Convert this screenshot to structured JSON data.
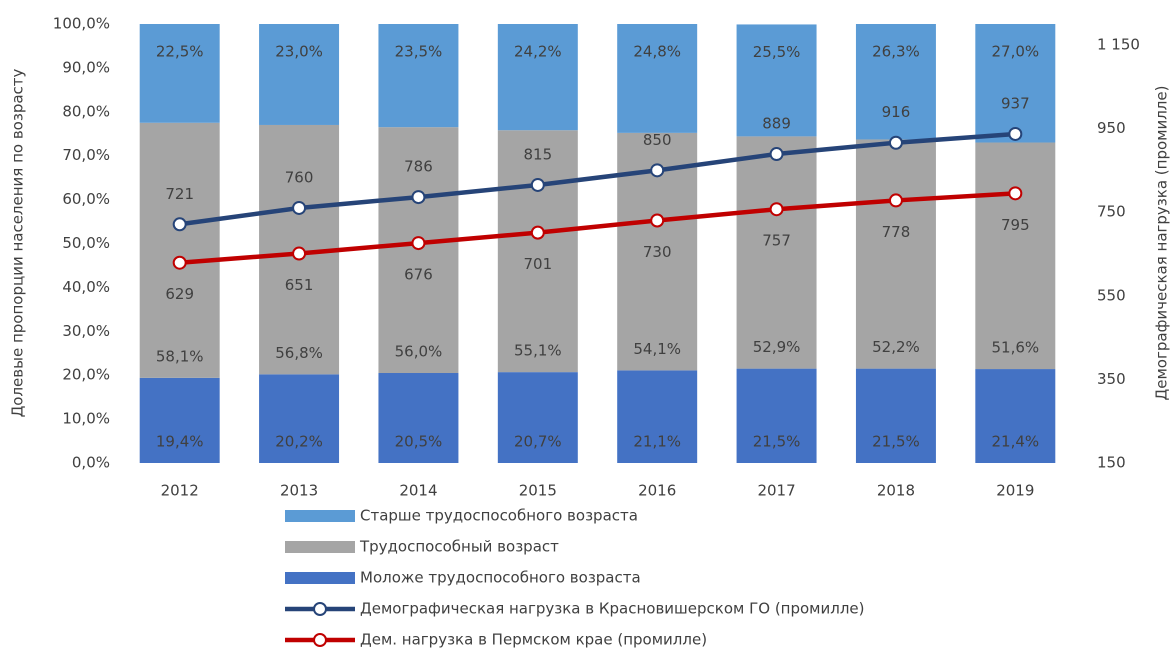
{
  "chart_data": {
    "type": "bar",
    "stacked": true,
    "categories": [
      "2012",
      "2013",
      "2014",
      "2015",
      "2016",
      "2017",
      "2018",
      "2019"
    ],
    "ylabel": "Долевые пропорции населения по возрасту",
    "y2label": "Демографическая нагрузка (промилле)",
    "ylim": [
      0,
      100
    ],
    "yticks": [
      {
        "value": 0,
        "label": "0,0%"
      },
      {
        "value": 10,
        "label": "10,0%"
      },
      {
        "value": 20,
        "label": "20,0%"
      },
      {
        "value": 30,
        "label": "30,0%"
      },
      {
        "value": 40,
        "label": "40,0%"
      },
      {
        "value": 50,
        "label": "50,0%"
      },
      {
        "value": 60,
        "label": "60,0%"
      },
      {
        "value": 70,
        "label": "70,0%"
      },
      {
        "value": 80,
        "label": "80,0%"
      },
      {
        "value": 90,
        "label": "90,0%"
      },
      {
        "value": 100,
        "label": "100,0%"
      }
    ],
    "y2lim": [
      150,
      1200
    ],
    "y2ticks": [
      150,
      350,
      550,
      750,
      950,
      {
        "value": 1150,
        "label": "1 150"
      }
    ],
    "series": [
      {
        "name": "Моложе трудоспособного возраста",
        "type": "bar",
        "color": "#4472c4",
        "values": [
          19.4,
          20.2,
          20.5,
          20.7,
          21.1,
          21.5,
          21.5,
          21.4
        ],
        "value_labels": [
          "19,4%",
          "20,2%",
          "20,5%",
          "20,7%",
          "21,1%",
          "21,5%",
          "21,5%",
          "21,4%"
        ]
      },
      {
        "name": "Трудоспособный возраст",
        "type": "bar",
        "color": "#a5a5a5",
        "values": [
          58.1,
          56.8,
          56.0,
          55.1,
          54.1,
          52.9,
          52.2,
          51.6
        ],
        "value_labels": [
          "58,1%",
          "56,8%",
          "56,0%",
          "55,1%",
          "54,1%",
          "52,9%",
          "52,2%",
          "51,6%"
        ]
      },
      {
        "name": "Старше трудоспособного возраста",
        "type": "bar",
        "color": "#5b9bd5",
        "values": [
          22.5,
          23.0,
          23.5,
          24.2,
          24.8,
          25.5,
          26.3,
          27.0
        ],
        "value_labels": [
          "22,5%",
          "23,0%",
          "23,5%",
          "24,2%",
          "24,8%",
          "25,5%",
          "26,3%",
          "27,0%"
        ]
      },
      {
        "name": "Демографическая нагрузка в Красновишерском ГО (промилле)",
        "type": "line",
        "axis": "y2",
        "color": "#264478",
        "values": [
          721,
          760,
          786,
          815,
          850,
          889,
          916,
          937
        ]
      },
      {
        "name": "Дем. нагрузка в Пермском крае (промилле)",
        "type": "line",
        "axis": "y2",
        "color": "#c00000",
        "values": [
          629,
          651,
          676,
          701,
          730,
          757,
          778,
          795
        ]
      }
    ]
  }
}
